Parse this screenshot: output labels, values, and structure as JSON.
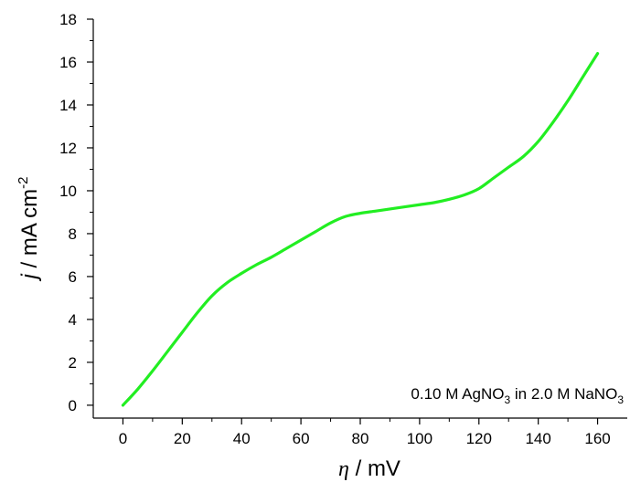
{
  "chart_data": {
    "type": "line",
    "title": "",
    "xlabel": {
      "symbol": "η",
      "unit": " / mV"
    },
    "ylabel": {
      "symbol": "j",
      "unit": " / mA cm",
      "superscript": "-2"
    },
    "xlim": [
      -10,
      170
    ],
    "ylim": [
      -0.6,
      18
    ],
    "xticks": [
      0,
      20,
      40,
      60,
      80,
      100,
      120,
      140,
      160
    ],
    "yticks": [
      0,
      2,
      4,
      6,
      8,
      10,
      12,
      14,
      16,
      18
    ],
    "grid": false,
    "annotation": {
      "prefix": "0.10 M AgNO",
      "sub1": "3",
      "middle": " in 2.0 M NaNO",
      "sub2": "3",
      "placement": "bottom-right"
    },
    "series": [
      {
        "color": "#22ee22",
        "x": [
          0,
          5,
          10,
          15,
          20,
          25,
          30,
          35,
          40,
          45,
          50,
          55,
          60,
          65,
          70,
          75,
          80,
          85,
          90,
          95,
          100,
          105,
          110,
          115,
          120,
          125,
          130,
          135,
          140,
          145,
          150,
          155,
          160
        ],
        "y": [
          0,
          0.75,
          1.6,
          2.5,
          3.4,
          4.3,
          5.1,
          5.7,
          6.15,
          6.55,
          6.9,
          7.3,
          7.7,
          8.1,
          8.5,
          8.8,
          8.95,
          9.05,
          9.15,
          9.25,
          9.35,
          9.45,
          9.6,
          9.8,
          10.1,
          10.6,
          11.1,
          11.6,
          12.3,
          13.2,
          14.2,
          15.3,
          16.4
        ]
      }
    ]
  }
}
